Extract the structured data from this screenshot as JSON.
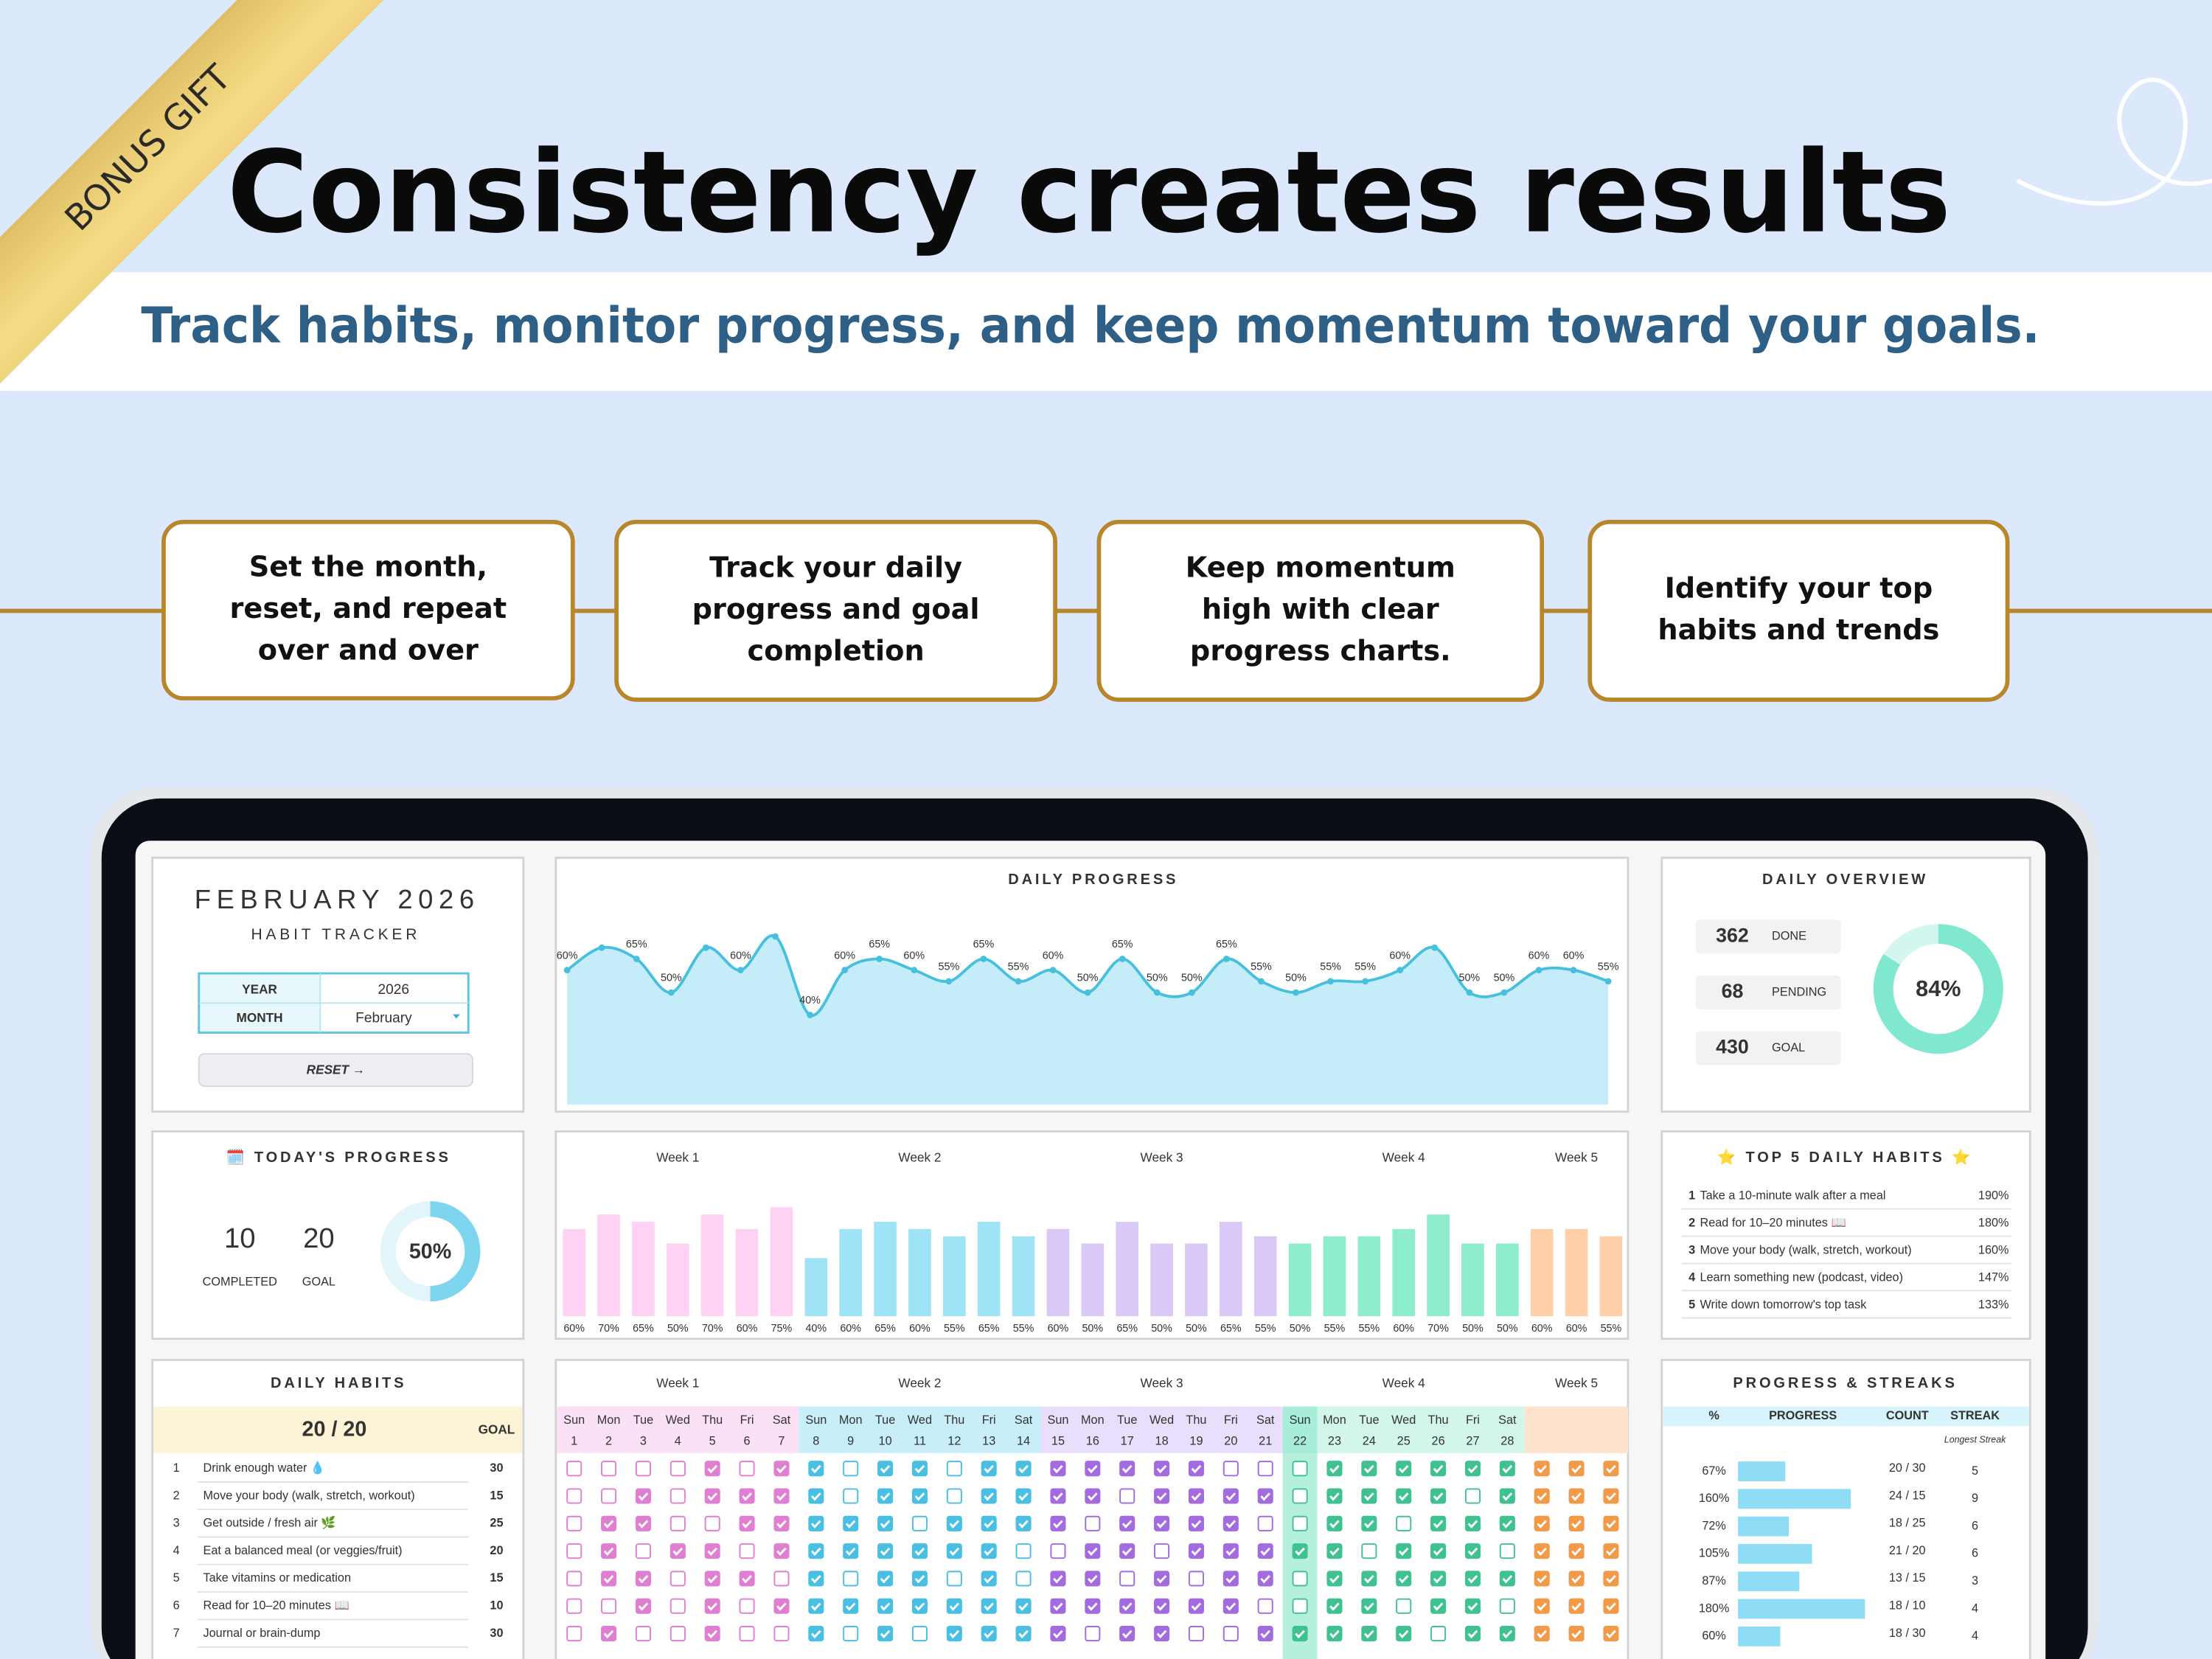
{
  "badge": "BONUS GIFT",
  "header": {
    "title": "Consistency creates results",
    "subtitle": "Track habits, monitor progress, and keep momentum toward your goals."
  },
  "features": [
    [
      "Set the month,",
      "reset, and repeat",
      "over and over"
    ],
    [
      "Track your daily",
      "progress and goal",
      "completion"
    ],
    [
      "Keep momentum",
      "high with clear",
      "progress charts."
    ],
    [
      "Identify your top",
      "habits and trends"
    ]
  ],
  "tracker": {
    "title": "FEBRUARY 2026",
    "subtitle": "HABIT TRACKER",
    "year_label": "YEAR",
    "year": "2026",
    "month_label": "MONTH",
    "month": "February",
    "reset": "RESET →"
  },
  "daily_overview": {
    "title": "DAILY OVERVIEW",
    "stats": [
      {
        "value": "362",
        "label": "DONE"
      },
      {
        "value": "68",
        "label": "PENDING"
      },
      {
        "value": "430",
        "label": "GOAL"
      }
    ],
    "donut": {
      "value": 84,
      "label": "84%",
      "lim": [
        0,
        100
      ]
    }
  },
  "todays_progress": {
    "title": "🗓️ TODAY'S PROGRESS",
    "stats": [
      {
        "value": "10",
        "label": "COMPLETED"
      },
      {
        "value": "20",
        "label": "GOAL"
      }
    ],
    "donut": {
      "value": 50,
      "label": "50%",
      "lim": [
        0,
        100
      ]
    }
  },
  "top_habits": {
    "title": "⭐ TOP 5 DAILY HABITS ⭐",
    "rows": [
      [
        "1",
        "Take a 10-minute walk after a meal",
        "190%"
      ],
      [
        "2",
        "Read for 10–20 minutes 📖",
        "180%"
      ],
      [
        "3",
        "Move your body (walk, stretch, workout)",
        "160%"
      ],
      [
        "4",
        "Learn something new (podcast, video)",
        "147%"
      ],
      [
        "5",
        "Write down tomorrow's top task",
        "133%"
      ]
    ]
  },
  "daily_habits": {
    "title": "DAILY HABITS",
    "summary": "20 / 20",
    "goal_header": "GOAL",
    "rows": [
      [
        "1",
        "Drink enough water 💧",
        "30"
      ],
      [
        "2",
        "Move your body (walk, stretch, workout)",
        "15"
      ],
      [
        "3",
        "Get outside / fresh air 🌿",
        "25"
      ],
      [
        "4",
        "Eat a balanced meal (or veggies/fruit)",
        "20"
      ],
      [
        "5",
        "Take vitamins or medication",
        "15"
      ],
      [
        "6",
        "Read for 10–20 minutes 📖",
        "10"
      ],
      [
        "7",
        "Journal or brain-dump",
        "30"
      ]
    ]
  },
  "chart_data": [
    {
      "type": "line",
      "title": "DAILY PROGRESS",
      "color": "#47c0de",
      "fill": "#c4edf9",
      "ylim": [
        0,
        90
      ],
      "values": [
        60,
        70,
        65,
        50,
        70,
        60,
        75,
        40,
        60,
        65,
        60,
        55,
        65,
        55,
        60,
        50,
        65,
        50,
        50,
        65,
        55,
        50,
        55,
        55,
        60,
        70,
        50,
        50,
        60,
        60,
        55
      ],
      "value_labels": [
        "60%",
        null,
        "65%",
        "50%",
        null,
        "60%",
        null,
        "40%",
        "60%",
        "65%",
        "60%",
        "55%",
        "65%",
        "55%",
        "60%",
        "50%",
        "65%",
        "50%",
        "50%",
        "65%",
        "55%",
        "50%",
        "55%",
        "55%",
        "60%",
        null,
        "50%",
        "50%",
        "60%",
        "60%",
        "55%"
      ]
    },
    {
      "type": "bar",
      "ylim": [
        0,
        100
      ],
      "series": [
        {
          "name": "Week 1",
          "color": "#ffd2f3",
          "label_color": "#e07fd2",
          "values": [
            60,
            70,
            65,
            50,
            70,
            60,
            75
          ],
          "value_labels": [
            "60%",
            "70%",
            "65%",
            "50%",
            "70%",
            "60%",
            "75%"
          ]
        },
        {
          "name": "Week 2",
          "color": "#9fe3f6",
          "label_color": "#7ccfe6",
          "values": [
            40,
            60,
            65,
            60,
            55,
            65,
            55
          ],
          "value_labels": [
            "40%",
            "60%",
            "65%",
            "60%",
            "55%",
            "65%",
            "55%"
          ]
        },
        {
          "name": "Week 3",
          "color": "#dac8f6",
          "label_color": "#a46ae0",
          "values": [
            60,
            50,
            65,
            50,
            50,
            65,
            55
          ],
          "value_labels": [
            "60%",
            "50%",
            "65%",
            "50%",
            "50%",
            "65%",
            "55%"
          ]
        },
        {
          "name": "Week 4",
          "color": "#8eeccf",
          "label_color": "#45c897",
          "values": [
            50,
            55,
            55,
            60,
            70,
            50,
            50
          ],
          "value_labels": [
            "50%",
            "55%",
            "55%",
            "60%",
            "70%",
            "50%",
            "50%"
          ]
        },
        {
          "name": "Week 5",
          "color": "#ffd0a8",
          "label_color": "#f39a48",
          "values": [
            60,
            60,
            55
          ],
          "value_labels": [
            "60%",
            "60%",
            "55%"
          ]
        }
      ]
    }
  ],
  "habit_grid": {
    "weeks": [
      {
        "name": "Week 1",
        "color": "#e07fd2",
        "fill": "#fbe1f6",
        "days": [
          [
            "Sun",
            "1"
          ],
          [
            "Mon",
            "2"
          ],
          [
            "Tue",
            "3"
          ],
          [
            "Wed",
            "4"
          ],
          [
            "Thu",
            "5"
          ],
          [
            "Fri",
            "6"
          ],
          [
            "Sat",
            "7"
          ]
        ]
      },
      {
        "name": "Week 2",
        "color": "#49bfe3",
        "fill": "#c8eefa",
        "days": [
          [
            "Sun",
            "8"
          ],
          [
            "Mon",
            "9"
          ],
          [
            "Tue",
            "10"
          ],
          [
            "Wed",
            "11"
          ],
          [
            "Thu",
            "12"
          ],
          [
            "Fri",
            "13"
          ],
          [
            "Sat",
            "14"
          ]
        ]
      },
      {
        "name": "Week 3",
        "color": "#a46ae0",
        "fill": "#e9defb",
        "days": [
          [
            "Sun",
            "15"
          ],
          [
            "Mon",
            "16"
          ],
          [
            "Tue",
            "17"
          ],
          [
            "Wed",
            "18"
          ],
          [
            "Thu",
            "19"
          ],
          [
            "Fri",
            "20"
          ],
          [
            "Sat",
            "21"
          ]
        ]
      },
      {
        "name": "Week 4",
        "color": "#3fc28f",
        "fill": "#d3f6ea",
        "days": [
          [
            "Sun",
            "22"
          ],
          [
            "Mon",
            "23"
          ],
          [
            "Tue",
            "24"
          ],
          [
            "Wed",
            "25"
          ],
          [
            "Thu",
            "26"
          ],
          [
            "Fri",
            "27"
          ],
          [
            "Sat",
            "28"
          ]
        ]
      },
      {
        "name": "Week 5",
        "color": "#f39a48",
        "fill": "#fde2cd",
        "days": []
      }
    ],
    "highlight_date": "22",
    "highlight_color": "#95ead2",
    "checks": [
      [
        [
          0,
          0,
          0,
          0,
          1,
          0,
          1
        ],
        [
          1,
          0,
          1,
          1,
          0,
          1,
          1
        ],
        [
          1,
          1,
          1,
          1,
          1,
          0,
          0
        ],
        [
          0,
          1,
          1,
          1,
          1,
          1,
          1
        ],
        [
          1,
          1,
          1
        ]
      ],
      [
        [
          0,
          0,
          1,
          0,
          1,
          1,
          1
        ],
        [
          1,
          0,
          1,
          1,
          0,
          1,
          1
        ],
        [
          1,
          1,
          0,
          1,
          1,
          1,
          1
        ],
        [
          0,
          1,
          1,
          1,
          1,
          0,
          1
        ],
        [
          1,
          1,
          1
        ]
      ],
      [
        [
          0,
          1,
          1,
          0,
          0,
          1,
          1
        ],
        [
          1,
          1,
          1,
          0,
          1,
          1,
          1
        ],
        [
          1,
          0,
          1,
          1,
          1,
          1,
          0
        ],
        [
          0,
          1,
          1,
          0,
          1,
          1,
          1
        ],
        [
          1,
          1,
          1
        ]
      ],
      [
        [
          0,
          1,
          0,
          1,
          1,
          0,
          1
        ],
        [
          1,
          1,
          1,
          1,
          1,
          1,
          0
        ],
        [
          0,
          1,
          1,
          0,
          1,
          1,
          1
        ],
        [
          1,
          1,
          0,
          1,
          1,
          1,
          0
        ],
        [
          1,
          1,
          1
        ]
      ],
      [
        [
          0,
          1,
          1,
          0,
          1,
          1,
          0
        ],
        [
          1,
          0,
          1,
          1,
          0,
          1,
          0
        ],
        [
          1,
          1,
          0,
          1,
          0,
          1,
          1
        ],
        [
          0,
          1,
          1,
          1,
          1,
          1,
          1
        ],
        [
          1,
          1,
          1
        ]
      ],
      [
        [
          0,
          0,
          1,
          0,
          1,
          0,
          1
        ],
        [
          1,
          1,
          1,
          1,
          1,
          1,
          1
        ],
        [
          1,
          1,
          1,
          1,
          1,
          1,
          0
        ],
        [
          0,
          1,
          1,
          0,
          1,
          1,
          0
        ],
        [
          1,
          1,
          1
        ]
      ],
      [
        [
          0,
          1,
          0,
          0,
          1,
          0,
          0
        ],
        [
          1,
          0,
          1,
          0,
          1,
          1,
          1
        ],
        [
          1,
          0,
          1,
          1,
          0,
          0,
          1
        ],
        [
          1,
          1,
          1,
          1,
          0,
          1,
          1
        ],
        [
          1,
          1,
          1
        ]
      ]
    ]
  },
  "streaks": {
    "title": "PROGRESS & STREAKS",
    "headers": [
      "%",
      "PROGRESS",
      "COUNT",
      "STREAK"
    ],
    "note": "Longest Streak",
    "color": "#8fdcf5",
    "xlim": [
      0,
      200
    ],
    "values": [
      67,
      160,
      72,
      105,
      87,
      180,
      60
    ],
    "value_labels": [
      "67%",
      "160%",
      "72%",
      "105%",
      "87%",
      "180%",
      "60%"
    ],
    "counts": [
      "20 / 30",
      "24 / 15",
      "18 / 25",
      "21 / 20",
      "13 / 15",
      "18 / 10",
      "18 / 30"
    ],
    "streaks": [
      "5",
      "9",
      "6",
      "6",
      "3",
      "4",
      "4"
    ]
  }
}
